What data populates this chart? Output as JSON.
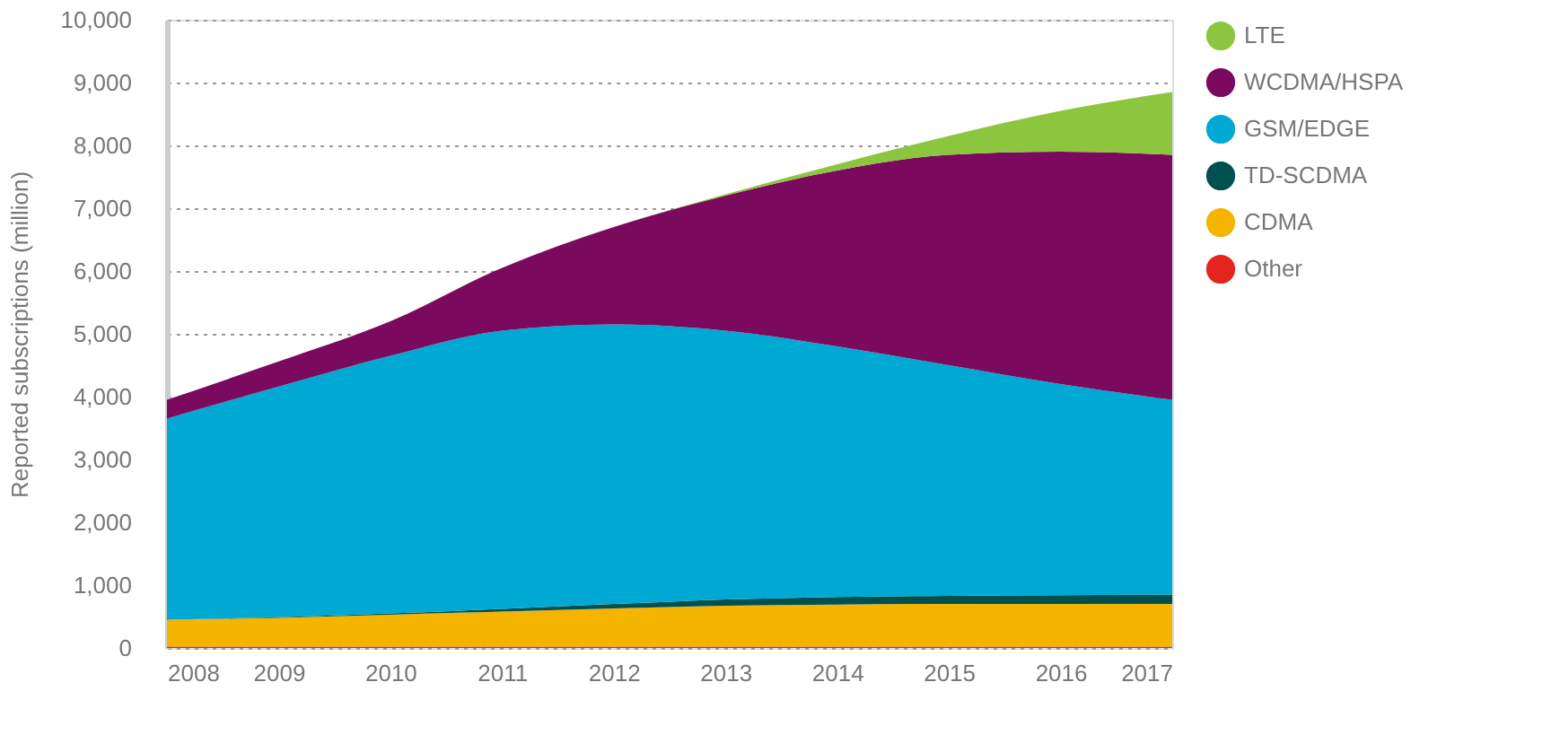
{
  "chart_data": {
    "type": "area",
    "stacked": true,
    "ylabel": "Reported subscriptions (million)",
    "x": [
      2008,
      2009,
      2010,
      2011,
      2012,
      2013,
      2014,
      2015,
      2016,
      2017
    ],
    "xlim": [
      2008,
      2017
    ],
    "xticks": [
      2008,
      2009,
      2010,
      2011,
      2012,
      2013,
      2014,
      2015,
      2016,
      2017
    ],
    "ylim": [
      0,
      10000
    ],
    "yticks": [
      0,
      {
        "value": 1000,
        "label": "1,000"
      },
      {
        "value": 2000,
        "label": "2,000"
      },
      {
        "value": 3000,
        "label": "3,000"
      },
      {
        "value": 4000,
        "label": "4,000"
      },
      {
        "value": 5000,
        "label": "5,000"
      },
      {
        "value": 6000,
        "label": "6,000"
      },
      {
        "value": 7000,
        "label": "7,000"
      },
      {
        "value": 8000,
        "label": "8,000"
      },
      {
        "value": 9000,
        "label": "9,000"
      },
      {
        "value": 10000,
        "label": "10,000"
      }
    ],
    "grid": "y",
    "legend": "right",
    "series": [
      {
        "name": "Other",
        "color": "#e3251d",
        "values": [
          20,
          20,
          20,
          20,
          20,
          20,
          20,
          20,
          20,
          20
        ]
      },
      {
        "name": "CDMA",
        "color": "#f5b400",
        "values": [
          430,
          460,
          510,
          560,
          610,
          650,
          670,
          680,
          680,
          680
        ]
      },
      {
        "name": "TD-SCDMA",
        "color": "#00504f",
        "values": [
          0,
          10,
          20,
          40,
          70,
          100,
          120,
          130,
          140,
          150
        ]
      },
      {
        "name": "GSM/EDGE",
        "color": "#00a9d4",
        "values": [
          3200,
          3670,
          4100,
          4430,
          4450,
          4280,
          3990,
          3670,
          3360,
          3100
        ]
      },
      {
        "name": "WCDMA/HSPA",
        "color": "#7b0a5e",
        "values": [
          300,
          400,
          550,
          1000,
          1550,
          2150,
          2800,
          3350,
          3700,
          3900
        ]
      },
      {
        "name": "LTE",
        "color": "#8cc63f",
        "values": [
          0,
          0,
          0,
          0,
          0,
          20,
          100,
          300,
          650,
          1000
        ]
      }
    ]
  }
}
